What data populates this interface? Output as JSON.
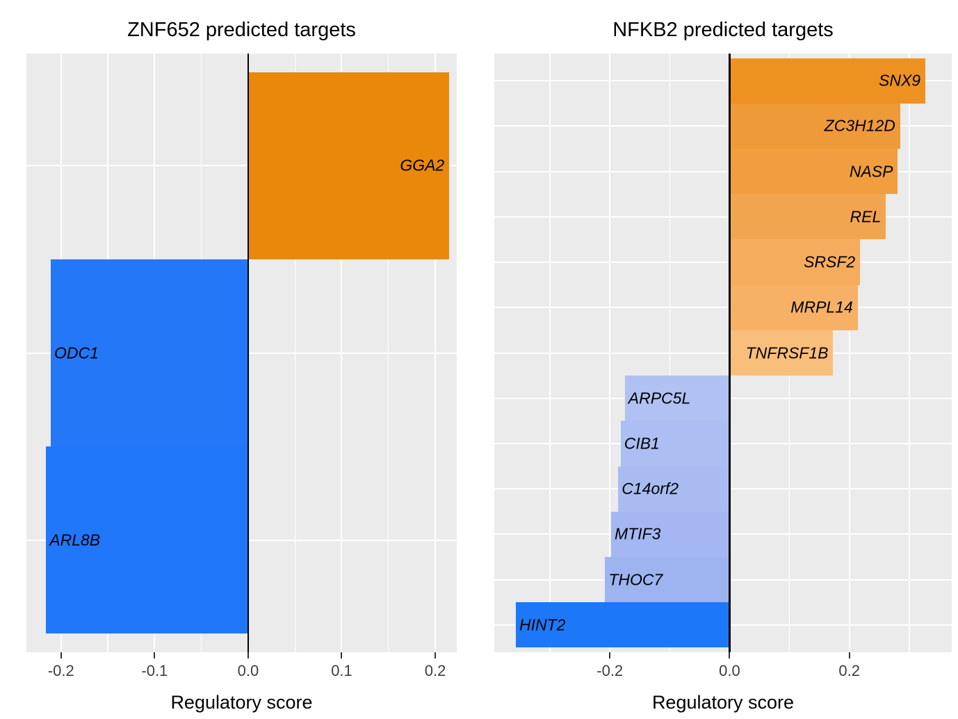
{
  "chart_data": [
    {
      "type": "bar",
      "orientation": "horizontal",
      "title": "ZNF652 predicted targets",
      "xlabel": "Regulatory score",
      "xlim": [
        -0.237,
        0.223
      ],
      "grid": true,
      "panel_background": "#EBEBEB",
      "gridline_color": "#FFFFFF",
      "zero_line_color": "#000000",
      "x_major_ticks": [
        {
          "value": -0.2,
          "label": "-0.2"
        },
        {
          "value": -0.1,
          "label": "-0.1"
        },
        {
          "value": 0.0,
          "label": "0.0"
        },
        {
          "value": 0.1,
          "label": "0.1"
        },
        {
          "value": 0.2,
          "label": "0.2"
        }
      ],
      "x_minor_gridlines": [
        -0.15,
        -0.05,
        0.05,
        0.15
      ],
      "bars": [
        {
          "label": "GGA2",
          "value": 0.215,
          "color": "#E8890B"
        },
        {
          "label": "ODC1",
          "value": -0.211,
          "color": "#2478F8"
        },
        {
          "label": "ARL8B",
          "value": -0.216,
          "color": "#2077FA"
        }
      ]
    },
    {
      "type": "bar",
      "orientation": "horizontal",
      "title": "NFKB2 predicted targets",
      "xlabel": "Regulatory score",
      "xlim": [
        -0.393,
        0.371
      ],
      "grid": true,
      "panel_background": "#EBEBEB",
      "gridline_color": "#FFFFFF",
      "zero_line_color": "#000000",
      "x_major_ticks": [
        {
          "value": -0.2,
          "label": "-0.2"
        },
        {
          "value": 0.0,
          "label": "0.0"
        },
        {
          "value": 0.2,
          "label": "0.2"
        }
      ],
      "x_minor_gridlines": [
        -0.3,
        -0.1,
        0.1,
        0.3
      ],
      "bars": [
        {
          "label": "SNX9",
          "value": 0.327,
          "color": "#ED9221"
        },
        {
          "label": "ZC3H12D",
          "value": 0.285,
          "color": "#EF9A38"
        },
        {
          "label": "NASP",
          "value": 0.281,
          "color": "#F09E40"
        },
        {
          "label": "REL",
          "value": 0.261,
          "color": "#F2A54F"
        },
        {
          "label": "SRSF2",
          "value": 0.218,
          "color": "#F5AC5D"
        },
        {
          "label": "MRPL14",
          "value": 0.214,
          "color": "#F6B166"
        },
        {
          "label": "TNFRSF1B",
          "value": 0.173,
          "color": "#F9BE7B"
        },
        {
          "label": "ARPC5L",
          "value": -0.175,
          "color": "#B0C1F2"
        },
        {
          "label": "CIB1",
          "value": -0.182,
          "color": "#ACBEF2"
        },
        {
          "label": "C14orf2",
          "value": -0.186,
          "color": "#A9BCF2"
        },
        {
          "label": "MTIF3",
          "value": -0.198,
          "color": "#A4B7F3"
        },
        {
          "label": "THOC7",
          "value": -0.208,
          "color": "#9DB4F0"
        },
        {
          "label": "HINT2",
          "value": -0.357,
          "color": "#1C78F8"
        }
      ]
    }
  ]
}
